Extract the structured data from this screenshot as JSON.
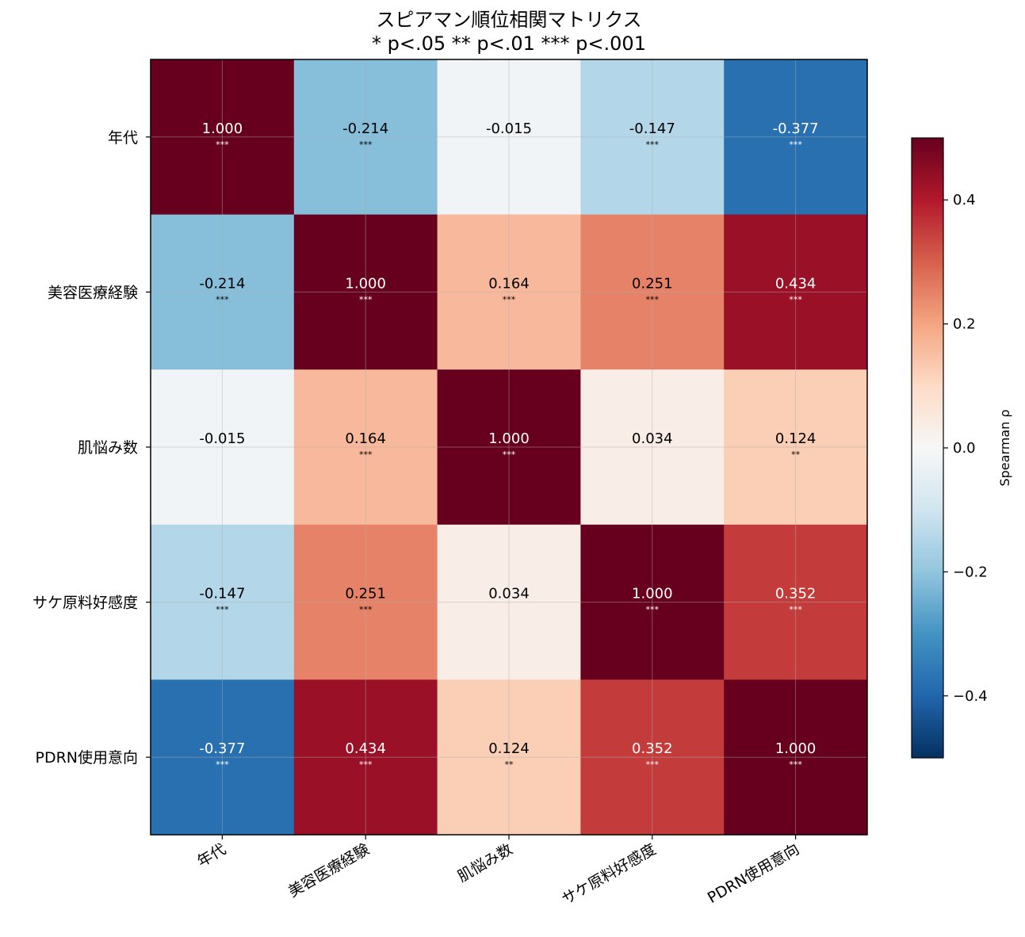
{
  "chart_data": {
    "type": "heatmap",
    "title": "スピアマン順位相関マトリクス",
    "subtitle": "* p<.05  ** p<.01  *** p<.001",
    "row_labels": [
      "年代",
      "美容医療経験",
      "肌悩み数",
      "サケ原料好感度",
      "PDRN使用意向"
    ],
    "col_labels": [
      "年代",
      "美容医療経験",
      "肌悩み数",
      "サケ原料好感度",
      "PDRN使用意向"
    ],
    "values": [
      [
        1.0,
        -0.214,
        -0.015,
        -0.147,
        -0.377
      ],
      [
        -0.214,
        1.0,
        0.164,
        0.251,
        0.434
      ],
      [
        -0.015,
        0.164,
        1.0,
        0.034,
        0.124
      ],
      [
        -0.147,
        0.251,
        0.034,
        1.0,
        0.352
      ],
      [
        -0.377,
        0.434,
        0.124,
        0.352,
        1.0
      ]
    ],
    "cell_text": [
      [
        "1.000",
        "-0.214",
        "-0.015",
        "-0.147",
        "-0.377"
      ],
      [
        "-0.214",
        "1.000",
        "0.164",
        "0.251",
        "0.434"
      ],
      [
        "-0.015",
        "0.164",
        "1.000",
        "0.034",
        "0.124"
      ],
      [
        "-0.147",
        "0.251",
        "0.034",
        "1.000",
        "0.352"
      ],
      [
        "-0.377",
        "0.434",
        "0.124",
        "0.352",
        "1.000"
      ]
    ],
    "significance": [
      [
        "***",
        "***",
        "",
        "***",
        "***"
      ],
      [
        "***",
        "***",
        "***",
        "***",
        "***"
      ],
      [
        "",
        "***",
        "***",
        "",
        "**"
      ],
      [
        "***",
        "***",
        "",
        "***",
        "***"
      ],
      [
        "***",
        "***",
        "**",
        "***",
        "***"
      ]
    ],
    "colormap": "RdBu_r",
    "color_range": [
      -0.5,
      0.5
    ],
    "colorbar": {
      "label": "Spearman ρ",
      "ticks": [
        -0.4,
        -0.2,
        0.0,
        0.2,
        0.4
      ],
      "tick_labels": [
        "−0.4",
        "−0.2",
        "0.0",
        "0.2",
        "0.4"
      ]
    },
    "grid": true
  }
}
